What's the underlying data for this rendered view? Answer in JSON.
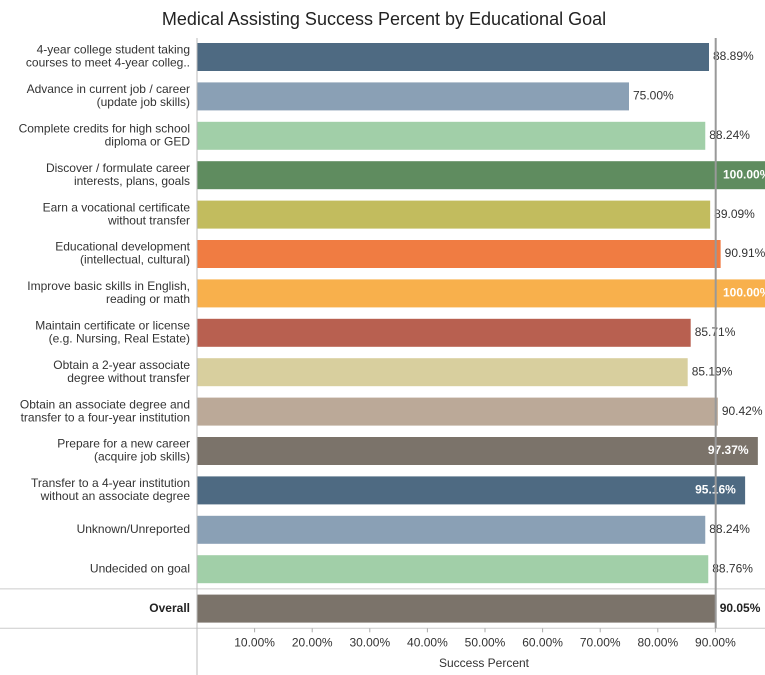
{
  "chart_data": {
    "type": "bar",
    "orientation": "horizontal",
    "title": "Medical Assisting Success Percent by Educational Goal",
    "x_label": "Success Percent",
    "categories": [
      [
        "4-year college student taking",
        "courses to meet 4-year colleg.."
      ],
      [
        "Advance in current job / career",
        "(update job skills)"
      ],
      [
        "Complete credits for high school",
        "diploma or GED"
      ],
      [
        "Discover / formulate career",
        "interests, plans, goals"
      ],
      [
        "Earn a vocational certificate",
        "without transfer"
      ],
      [
        "Educational development",
        "(intellectual, cultural)"
      ],
      [
        "Improve basic skills in English,",
        "reading or math"
      ],
      [
        "Maintain certificate or license",
        "(e.g. Nursing, Real Estate)"
      ],
      [
        "Obtain a 2-year associate",
        "degree without transfer"
      ],
      [
        "Obtain an associate degree and",
        "transfer to a four-year institution"
      ],
      [
        "Prepare for a new career",
        "(acquire job skills)"
      ],
      [
        "Transfer to a 4-year institution",
        "without an associate degree"
      ],
      [
        "Unknown/Unreported"
      ],
      [
        "Undecided on goal"
      ],
      [
        "Overall"
      ]
    ],
    "values": [
      88.89,
      75.0,
      88.24,
      100.0,
      89.09,
      90.91,
      100.0,
      85.71,
      85.19,
      90.42,
      97.37,
      95.16,
      88.24,
      88.76,
      90.05
    ],
    "value_labels": [
      "88.89%",
      "75.00%",
      "88.24%",
      "100.00%",
      "89.09%",
      "90.91%",
      "100.00%",
      "85.71%",
      "85.19%",
      "90.42%",
      "97.37%",
      "95.16%",
      "88.24%",
      "88.76%",
      "90.05%"
    ],
    "colors": [
      "#4e6a82",
      "#8aa0b5",
      "#a1cfa8",
      "#5f8c5f",
      "#c2bc5e",
      "#f07c42",
      "#f8b04c",
      "#b86050",
      "#d8cf9e",
      "#bba998",
      "#7b736a",
      "#4e6a82",
      "#8aa0b5",
      "#a1cfa8",
      "#7b736a"
    ],
    "xlim": [
      0,
      100
    ],
    "xticks": [
      {
        "value": 10,
        "label": "10.00%"
      },
      {
        "value": 20,
        "label": "20.00%"
      },
      {
        "value": 30,
        "label": "30.00%"
      },
      {
        "value": 40,
        "label": "40.00%"
      },
      {
        "value": 50,
        "label": "50.00%"
      },
      {
        "value": 60,
        "label": "60.00%"
      },
      {
        "value": 70,
        "label": "70.00%"
      },
      {
        "value": 80,
        "label": "80.00%"
      },
      {
        "value": 90,
        "label": "90.00%"
      }
    ]
  }
}
